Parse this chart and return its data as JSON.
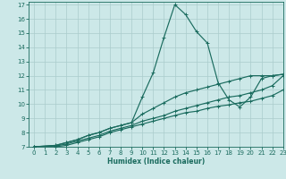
{
  "xlabel": "Humidex (Indice chaleur)",
  "xlim": [
    -0.5,
    23
  ],
  "ylim": [
    7,
    17.2
  ],
  "xticks": [
    0,
    1,
    2,
    3,
    4,
    5,
    6,
    7,
    8,
    9,
    10,
    11,
    12,
    13,
    14,
    15,
    16,
    17,
    18,
    19,
    20,
    21,
    22,
    23
  ],
  "yticks": [
    7,
    8,
    9,
    10,
    11,
    12,
    13,
    14,
    15,
    16,
    17
  ],
  "bg_color": "#cce8e8",
  "line_color": "#1a6b5e",
  "grid_color": "#aacccc",
  "lines": [
    {
      "x": [
        0,
        2,
        3,
        4,
        5,
        6,
        7,
        8,
        9,
        10,
        11,
        12,
        13,
        14,
        15,
        16,
        17,
        18,
        19,
        20,
        21,
        22,
        23
      ],
      "y": [
        7,
        7.1,
        7.3,
        7.5,
        7.8,
        8.0,
        8.3,
        8.5,
        8.7,
        10.5,
        12.2,
        14.7,
        17.0,
        16.3,
        15.1,
        14.3,
        11.5,
        10.3,
        9.8,
        10.5,
        11.8,
        12.0,
        12.1
      ]
    },
    {
      "x": [
        0,
        2,
        3,
        4,
        5,
        6,
        7,
        8,
        9,
        10,
        11,
        12,
        13,
        14,
        15,
        16,
        17,
        18,
        19,
        20,
        21,
        22,
        23
      ],
      "y": [
        7,
        7.1,
        7.3,
        7.5,
        7.8,
        8.0,
        8.3,
        8.5,
        8.7,
        9.3,
        9.7,
        10.1,
        10.5,
        10.8,
        11.0,
        11.2,
        11.4,
        11.6,
        11.8,
        12.0,
        12.0,
        12.0,
        12.1
      ]
    },
    {
      "x": [
        0,
        2,
        3,
        4,
        5,
        6,
        7,
        8,
        9,
        10,
        11,
        12,
        13,
        14,
        15,
        16,
        17,
        18,
        19,
        20,
        21,
        22,
        23
      ],
      "y": [
        7,
        7.05,
        7.2,
        7.4,
        7.6,
        7.8,
        8.1,
        8.3,
        8.5,
        8.8,
        9.0,
        9.2,
        9.5,
        9.7,
        9.9,
        10.1,
        10.3,
        10.5,
        10.6,
        10.8,
        11.0,
        11.3,
        12.0
      ]
    },
    {
      "x": [
        0,
        2,
        3,
        4,
        5,
        6,
        7,
        8,
        9,
        10,
        11,
        12,
        13,
        14,
        15,
        16,
        17,
        18,
        19,
        20,
        21,
        22,
        23
      ],
      "y": [
        7,
        7.0,
        7.1,
        7.3,
        7.5,
        7.7,
        8.0,
        8.2,
        8.4,
        8.6,
        8.8,
        9.0,
        9.2,
        9.4,
        9.5,
        9.7,
        9.85,
        9.95,
        10.1,
        10.2,
        10.4,
        10.6,
        11.0
      ]
    }
  ]
}
